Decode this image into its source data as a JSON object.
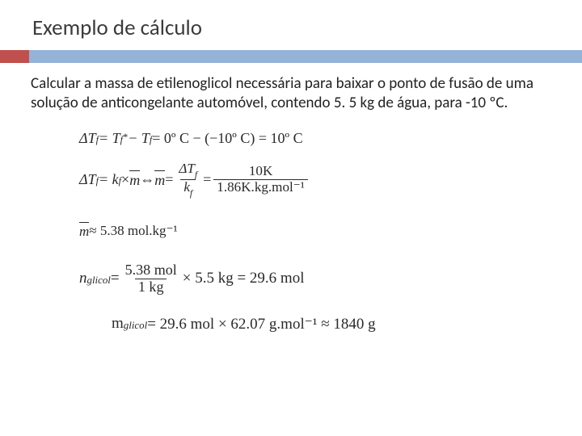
{
  "slide": {
    "title": "Exemplo de cálculo",
    "problem": "Calcular a massa de etilenoglicol necessária para baixar o ponto de fusão de uma solução de anticongelante automóvel, contendo 5. 5 kg de água, para -10 ºC.",
    "equations": {
      "eq1": {
        "lhs": "ΔT",
        "sub1": "f",
        "eq": " = T",
        "sub2": "f",
        "sup1": "*",
        "minus": " − T",
        "sub3": "f",
        "rhs": " = 0º C − (−10º C) = 10º C"
      },
      "eq2": {
        "part1": "ΔT",
        "sub1": "f",
        "part2": " = k",
        "sub2": "f",
        "part3": " × ",
        "mbar": "m",
        "iff": " ⇔ ",
        "mbar2": "m",
        "eq": " = ",
        "frac1_num": "ΔT",
        "frac1_num_sub": "f",
        "frac1_den": "k",
        "frac1_den_sub": "f",
        "eq2": " = ",
        "frac2_num": "10K",
        "frac2_den": "1.86K.kg.mol⁻¹"
      },
      "eq3": {
        "mbar": "m",
        "approx": " ≈ 5.38 mol.kg⁻¹"
      },
      "eq4": {
        "n": "n",
        "sub": "glicol",
        "eq": " = ",
        "frac_num": "5.38 mol",
        "frac_den": "1 kg",
        "tail": " × 5.5 kg = 29.6 mol"
      },
      "eq5": {
        "m": "m",
        "sub": "glicol",
        "rhs": " = 29.6 mol × 62.07 g.mol⁻¹ ≈ 1840 g"
      }
    }
  },
  "style": {
    "accent_left_color": "#c0504d",
    "accent_right_color": "#95b3d7",
    "title_color": "#3b3b3b",
    "body_color": "#222222"
  }
}
